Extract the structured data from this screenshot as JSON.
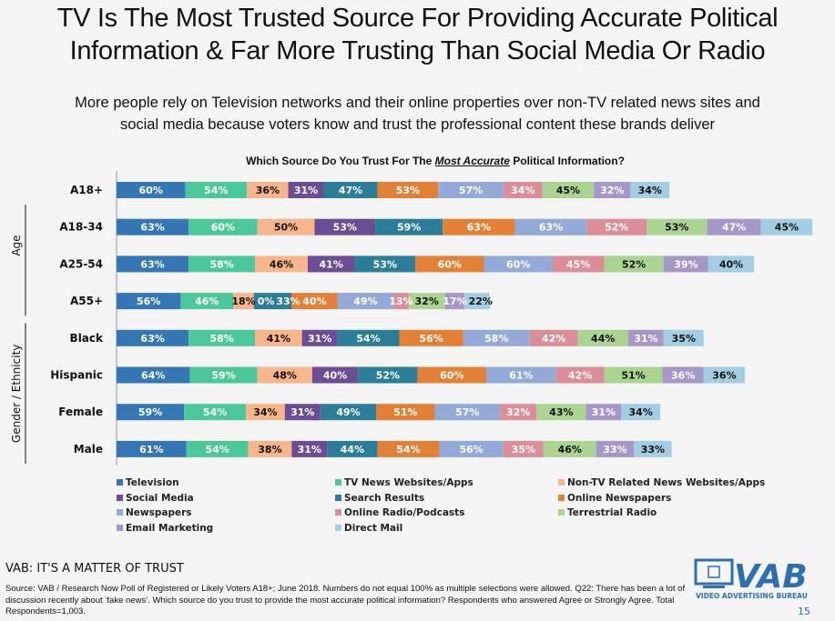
{
  "header": {
    "title_line1": "TV Is The Most Trusted Source For Providing Accurate Political",
    "title_line2": "Information & Far More Trusting Than Social Media Or Radio",
    "subtitle_line1": "More people rely on Television networks and their online properties over non-TV related news sites and",
    "subtitle_line2": "social media because voters know and trust the professional content these brands deliver"
  },
  "chart_data": {
    "type": "bar",
    "stacked": true,
    "orientation": "horizontal",
    "title_pre": "Which Source Do You Trust For The ",
    "title_em": "Most Accurate",
    "title_post": " Political Information?",
    "group_labels": [
      "Age",
      "Gender / Ethnicity"
    ],
    "categories": [
      "A18+",
      "A18-34",
      "A25-54",
      "A55+",
      "Black",
      "Hispanic",
      "Female",
      "Male"
    ],
    "legend_placement": "bottom",
    "series": [
      {
        "name": "Television",
        "color": "#3577b5",
        "text": "#ffffff",
        "values": [
          60,
          63,
          63,
          56,
          63,
          64,
          59,
          61
        ]
      },
      {
        "name": "TV News Websites/Apps",
        "color": "#4cc79b",
        "text": "#ffffff",
        "values": [
          54,
          60,
          58,
          46,
          58,
          59,
          54,
          54
        ]
      },
      {
        "name": "Non-TV Related News Websites/Apps",
        "color": "#f6b58a",
        "text": "#111111",
        "values": [
          36,
          50,
          46,
          18,
          41,
          48,
          34,
          38
        ]
      },
      {
        "name": "Social Media",
        "color": "#6b4d93",
        "text": "#ffffff",
        "values": [
          31,
          53,
          41,
          0,
          31,
          40,
          31,
          31
        ]
      },
      {
        "name": "Search Results",
        "color": "#2c7d98",
        "text": "#ffffff",
        "values": [
          47,
          59,
          53,
          33,
          54,
          52,
          49,
          44
        ]
      },
      {
        "name": "Online Newspapers",
        "color": "#e28037",
        "text": "#ffffff",
        "values": [
          53,
          63,
          60,
          40,
          56,
          60,
          51,
          54
        ]
      },
      {
        "name": "Newspapers",
        "color": "#93a9d8",
        "text": "#ffffff",
        "values": [
          57,
          63,
          60,
          49,
          58,
          61,
          57,
          56
        ]
      },
      {
        "name": "Online Radio/Podcasts",
        "color": "#dc8e98",
        "text": "#ffffff",
        "values": [
          34,
          52,
          45,
          13,
          42,
          42,
          32,
          35
        ]
      },
      {
        "name": "Terrestrial Radio",
        "color": "#abd392",
        "text": "#111111",
        "values": [
          45,
          53,
          52,
          32,
          44,
          51,
          43,
          46
        ]
      },
      {
        "name": "Email Marketing",
        "color": "#a697c9",
        "text": "#ffffff",
        "values": [
          32,
          47,
          39,
          17,
          31,
          36,
          31,
          33
        ]
      },
      {
        "name": "Direct Mail",
        "color": "#a3cde2",
        "text": "#111111",
        "values": [
          34,
          45,
          40,
          22,
          35,
          36,
          34,
          33
        ]
      }
    ]
  },
  "footer": {
    "tagline": "VAB: IT'S A MATTER OF TRUST",
    "source": "Source: VAB / Research Now Poll of Registered or Likely Voters A18+; June 2018. Numbers do not equal 100% as multiple selections were allowed. Q22: There has been a lot of discussion recently about ‘fake news’. Which source do you trust to provide the most accurate political information? Respondents who answered Agree or Strongly Agree. Total Respondents=1,003.",
    "logo_text": "VAB",
    "logo_subtext": "VIDEO ADVERTISING BUREAU",
    "page_number": "15"
  }
}
